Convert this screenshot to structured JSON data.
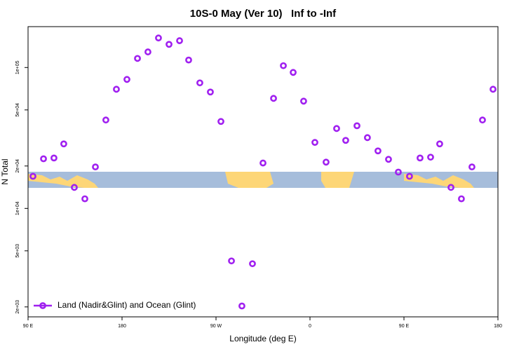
{
  "chart_data": {
    "type": "scatter",
    "title": "10S-0 May (Ver 10)   Inf to -Inf",
    "xlabel": "Longitude (deg E)",
    "ylabel": "N Total",
    "xlim": [
      90,
      540
    ],
    "xticks": [
      {
        "value": 90,
        "label": "90 E"
      },
      {
        "value": 180,
        "label": "180"
      },
      {
        "value": 270,
        "label": "90 W"
      },
      {
        "value": 360,
        "label": "0"
      },
      {
        "value": 450,
        "label": "90 E"
      },
      {
        "value": 540,
        "label": "180"
      }
    ],
    "ylim": [
      1700,
      195000
    ],
    "log_y": true,
    "yticks": [
      {
        "value": 2000,
        "label": "2e+03"
      },
      {
        "value": 5000,
        "label": "5e+03"
      },
      {
        "value": 10000,
        "label": "1e+04"
      },
      {
        "value": 20000,
        "label": "2e+04"
      },
      {
        "value": 50000,
        "label": "5e+04"
      },
      {
        "value": 100000,
        "label": "1e+05"
      }
    ],
    "legend": "lower left",
    "series": [
      {
        "name": "Land (Nadir&Glint) and Ocean (Glint)",
        "color": "#a020f0",
        "x": [
          94.7,
          104.8,
          114.8,
          124.2,
          134.3,
          144.4,
          154.5,
          164.5,
          174.6,
          184.7,
          194.8,
          204.8,
          214.9,
          225,
          235.1,
          243.8,
          254.5,
          264.6,
          274.7,
          284.8,
          294.8,
          304.9,
          315,
          325.1,
          334.5,
          343.9,
          353.9,
          364.7,
          375.4,
          385.5,
          394.2,
          405,
          415,
          425.1,
          435.2,
          444.6,
          455.3,
          465.4,
          475.5,
          484.2,
          495,
          505,
          515.1,
          525.2,
          535.3
        ],
        "values": [
          16900,
          22500,
          22800,
          28700,
          14100,
          11700,
          19700,
          42400,
          70100,
          82300,
          116000,
          129000,
          162000,
          146000,
          155000,
          113000,
          77800,
          67000,
          41400,
          4240,
          2030,
          4050,
          21000,
          60400,
          103000,
          92300,
          57700,
          29400,
          21300,
          36900,
          30400,
          38600,
          31800,
          25600,
          22300,
          18100,
          16900,
          22800,
          23100,
          28700,
          14100,
          11700,
          19700,
          42400,
          70100
        ]
      }
    ]
  }
}
